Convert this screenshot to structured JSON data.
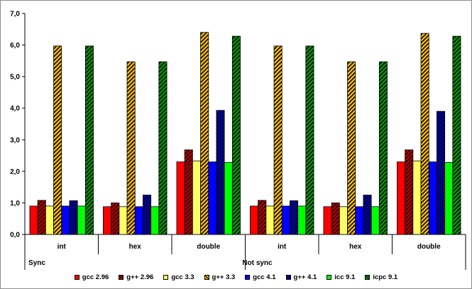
{
  "chart_data": {
    "type": "bar",
    "title": "",
    "xlabel": "",
    "ylabel": "",
    "ylim": [
      0,
      7
    ],
    "yticks": [
      "0,0",
      "1,0",
      "2,0",
      "3,0",
      "4,0",
      "5,0",
      "6,0",
      "7,0"
    ],
    "grid": false,
    "legend_position": "bottom",
    "groups": [
      {
        "label": "Sync",
        "categories": [
          "int",
          "hex",
          "double"
        ]
      },
      {
        "label": "Not sync",
        "categories": [
          "int",
          "hex",
          "double"
        ]
      }
    ],
    "categories": [
      "int",
      "hex",
      "double",
      "int",
      "hex",
      "double"
    ],
    "series": [
      {
        "name": "gcc 2.96",
        "color": "#ff0000",
        "hatch": false,
        "values": [
          0.9,
          0.88,
          2.3,
          0.9,
          0.88,
          2.3
        ]
      },
      {
        "name": "g++ 2.96",
        "color": "#c00000",
        "hatch": true,
        "values": [
          1.08,
          1.0,
          2.68,
          1.08,
          1.0,
          2.68
        ]
      },
      {
        "name": "gcc 3.3",
        "color": "#ffff66",
        "hatch": false,
        "values": [
          0.9,
          0.88,
          2.33,
          0.9,
          0.88,
          2.33
        ]
      },
      {
        "name": "g++ 3.3",
        "color": "#ffc000",
        "hatch": true,
        "values": [
          5.97,
          5.47,
          6.4,
          5.97,
          5.47,
          6.37
        ]
      },
      {
        "name": "gcc 4.1",
        "color": "#0000ff",
        "hatch": false,
        "values": [
          0.9,
          0.88,
          2.3,
          0.9,
          0.88,
          2.3
        ]
      },
      {
        "name": "g++ 4.1",
        "color": "#0000c0",
        "hatch": true,
        "values": [
          1.07,
          1.25,
          3.93,
          1.07,
          1.25,
          3.9
        ]
      },
      {
        "name": "icc 9.1",
        "color": "#00ff00",
        "hatch": false,
        "values": [
          0.9,
          0.88,
          2.28,
          0.9,
          0.88,
          2.28
        ]
      },
      {
        "name": "icpc 9.1",
        "color": "#00a000",
        "hatch": true,
        "values": [
          5.97,
          5.47,
          6.28,
          5.97,
          5.47,
          6.28
        ]
      }
    ]
  }
}
